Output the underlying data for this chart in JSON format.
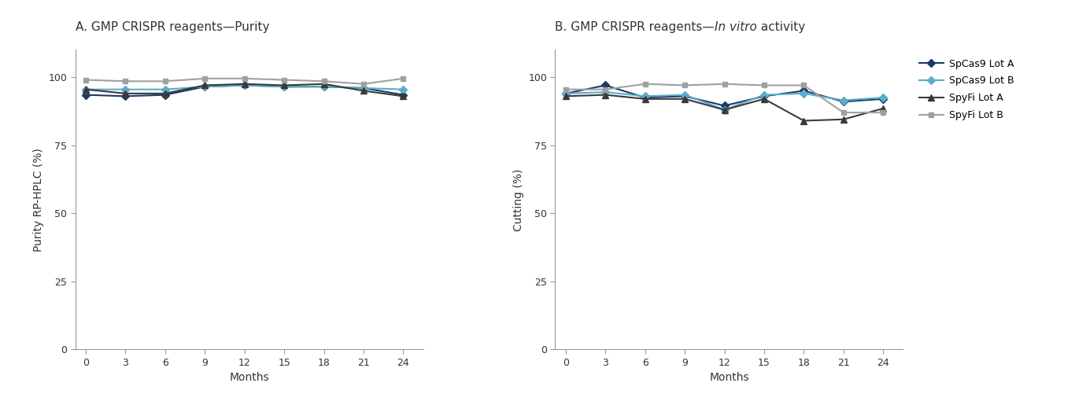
{
  "panel_A_title": "A. GMP CRISPR reagents—Purity",
  "panel_B_title_prefix": "B. GMP CRISPR reagents—",
  "panel_B_title_italic": "In vitro",
  "panel_B_title_suffix": " activity",
  "xlabel": "Months",
  "ylabel_A": "Purity RP-HPLC (%)",
  "ylabel_B": "Cutting (%)",
  "x_ticks": [
    0,
    3,
    6,
    9,
    12,
    15,
    18,
    21,
    24
  ],
  "xlim": [
    -0.8,
    25.5
  ],
  "ylim": [
    0,
    110
  ],
  "y_ticks": [
    0,
    25,
    50,
    75,
    100
  ],
  "months": [
    0,
    3,
    6,
    9,
    12,
    15,
    18,
    21,
    24
  ],
  "purity_SpCas9_LotA": [
    93.5,
    93.0,
    93.5,
    96.5,
    97.0,
    96.5,
    96.5,
    96.0,
    93.5
  ],
  "purity_SpCas9_LotB": [
    95.5,
    95.5,
    95.5,
    96.5,
    97.0,
    96.5,
    96.5,
    96.0,
    95.5
  ],
  "purity_SpyFi_LotA": [
    95.5,
    94.0,
    94.0,
    97.0,
    97.5,
    97.0,
    97.5,
    95.0,
    93.0
  ],
  "purity_SpyFi_LotB": [
    99.0,
    98.5,
    98.5,
    99.5,
    99.5,
    99.0,
    98.5,
    97.5,
    99.5
  ],
  "cutting_SpCas9_LotA": [
    94.0,
    97.0,
    92.5,
    93.0,
    89.5,
    93.0,
    95.0,
    91.0,
    92.0
  ],
  "cutting_SpCas9_LotB": [
    94.0,
    94.5,
    93.0,
    93.5,
    88.0,
    93.5,
    94.0,
    91.5,
    92.5
  ],
  "cutting_SpyFi_LotA": [
    93.0,
    93.5,
    92.0,
    92.0,
    88.0,
    92.0,
    84.0,
    84.5,
    88.5
  ],
  "cutting_SpyFi_LotB": [
    95.5,
    95.5,
    97.5,
    97.0,
    97.5,
    97.0,
    97.0,
    87.0,
    87.0
  ],
  "color_SpCas9_LotA": "#1a3a6b",
  "color_SpCas9_LotB": "#5aaccc",
  "color_SpyFi_LotA": "#3a3a3a",
  "color_SpyFi_LotB": "#a0a0a0",
  "legend_labels": [
    "SpCas9 Lot A",
    "SpCas9 Lot B",
    "SpyFi Lot A",
    "SpyFi Lot B"
  ],
  "background_color": "#ffffff",
  "axis_color": "#999999",
  "title_fontsize": 11,
  "label_fontsize": 10,
  "tick_fontsize": 9,
  "legend_fontsize": 9,
  "linewidth": 1.5
}
